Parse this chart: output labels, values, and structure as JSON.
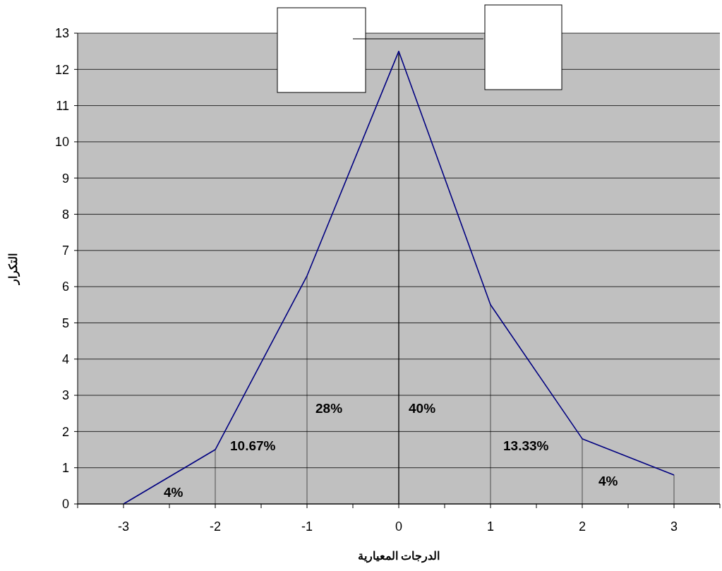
{
  "chart_data": {
    "type": "line",
    "xlabel": "الدرجات المعيارية",
    "ylabel": "التكرار",
    "x": [
      -3,
      -2,
      -1,
      0,
      1,
      2,
      3
    ],
    "series": [
      {
        "color": "#000080",
        "values": [
          0,
          1.5,
          6.3,
          12.5,
          5.5,
          1.8,
          0.8
        ],
        "errors": [
          null,
          [
            0,
            1.5
          ],
          [
            0,
            6.3
          ],
          [
            0,
            12.5
          ],
          [
            0,
            5.5
          ],
          [
            0,
            1.8
          ],
          [
            0,
            0.8
          ]
        ]
      }
    ],
    "xlim": [
      -3.5,
      3.5
    ],
    "xticks": [
      -3,
      -2,
      -1,
      0,
      1,
      2,
      3
    ],
    "ylim": [
      0,
      13
    ],
    "yticks": [
      0,
      1,
      2,
      3,
      4,
      5,
      6,
      7,
      8,
      9,
      10,
      11,
      12,
      13
    ],
    "grid": "y",
    "marker": "none",
    "line_style": "solid",
    "annotations": [
      "4%",
      "10.67%",
      "28%",
      "40%",
      "13.33%",
      "4%"
    ]
  }
}
